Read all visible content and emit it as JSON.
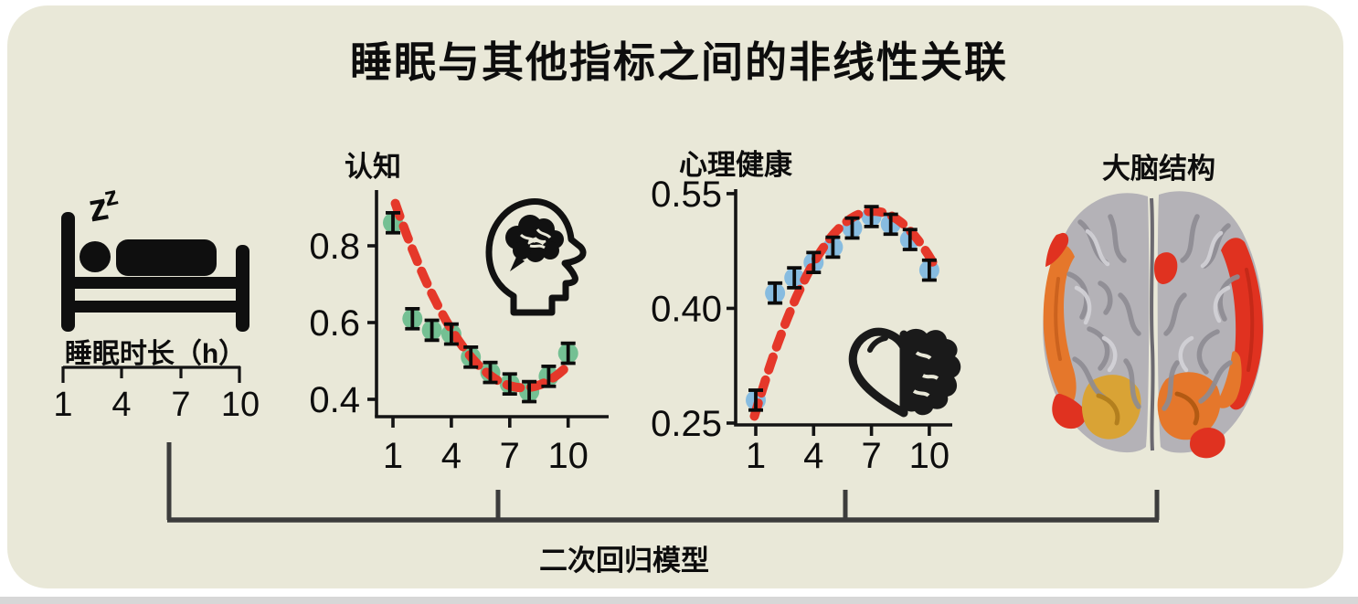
{
  "figure": {
    "title": "睡眠与其他指标之间的非线性关联",
    "footer_label": "二次回归模型",
    "background_color": "#e9e8d8",
    "ink_color": "#0d0d0d",
    "bracket_color": "#3c3c3c"
  },
  "sleep_panel": {
    "zzz_large": "z",
    "zzz_small": "z",
    "label": "睡眠时长（h）",
    "axis_ticks": [
      "1",
      "4",
      "7",
      "10"
    ]
  },
  "brain_panel": {
    "title": "大脑结构",
    "highlight_colors": [
      "#e03220",
      "#e5772b",
      "#d9a335"
    ],
    "cortex_color": "#b4b2b7"
  },
  "chart_data": [
    {
      "id": "cognition",
      "type": "scatter",
      "title": "认知",
      "x_ticks": [
        1,
        4,
        7,
        10
      ],
      "y_ticks": [
        {
          "v": 0.8,
          "label": "0.8"
        },
        {
          "v": 0.6,
          "label": "0.6"
        },
        {
          "v": 0.4,
          "label": "0.4"
        }
      ],
      "x": [
        1,
        2,
        3,
        4,
        5,
        6,
        7,
        8,
        9,
        10
      ],
      "y": [
        0.86,
        0.61,
        0.58,
        0.57,
        0.51,
        0.47,
        0.44,
        0.42,
        0.46,
        0.52
      ],
      "err": 0.026,
      "fit_curve": {
        "type": "quadratic",
        "a": 0.0111,
        "vertex_x": 7.7,
        "vertex_y": 0.43,
        "x_start": 1.12,
        "x_end": 9.98
      },
      "dot_color": "#74c093",
      "curve_color": "#e5382a",
      "xlim": [
        0.3,
        11.0
      ],
      "ylim": [
        0.34,
        0.95
      ]
    },
    {
      "id": "mental",
      "type": "scatter",
      "title": "心理健康",
      "x_ticks": [
        1,
        4,
        7,
        10
      ],
      "y_ticks": [
        {
          "v": 0.55,
          "label": "0.55"
        },
        {
          "v": 0.4,
          "label": "0.40"
        },
        {
          "v": 0.25,
          "label": "0.25"
        }
      ],
      "x": [
        1,
        2,
        3,
        4,
        5,
        6,
        7,
        8,
        9,
        10
      ],
      "y": [
        0.28,
        0.42,
        0.44,
        0.46,
        0.48,
        0.505,
        0.52,
        0.51,
        0.49,
        0.45
      ],
      "err": 0.013,
      "fit_curve": {
        "type": "quadratic",
        "a": -0.00704,
        "vertex_x": 7.1,
        "vertex_y": 0.527,
        "x_start": 0.93,
        "x_end": 10.28
      },
      "dot_color": "#87bce0",
      "curve_color": "#e5382a",
      "xlim": [
        0.3,
        11.0
      ],
      "ylim": [
        0.25,
        0.55
      ]
    }
  ]
}
